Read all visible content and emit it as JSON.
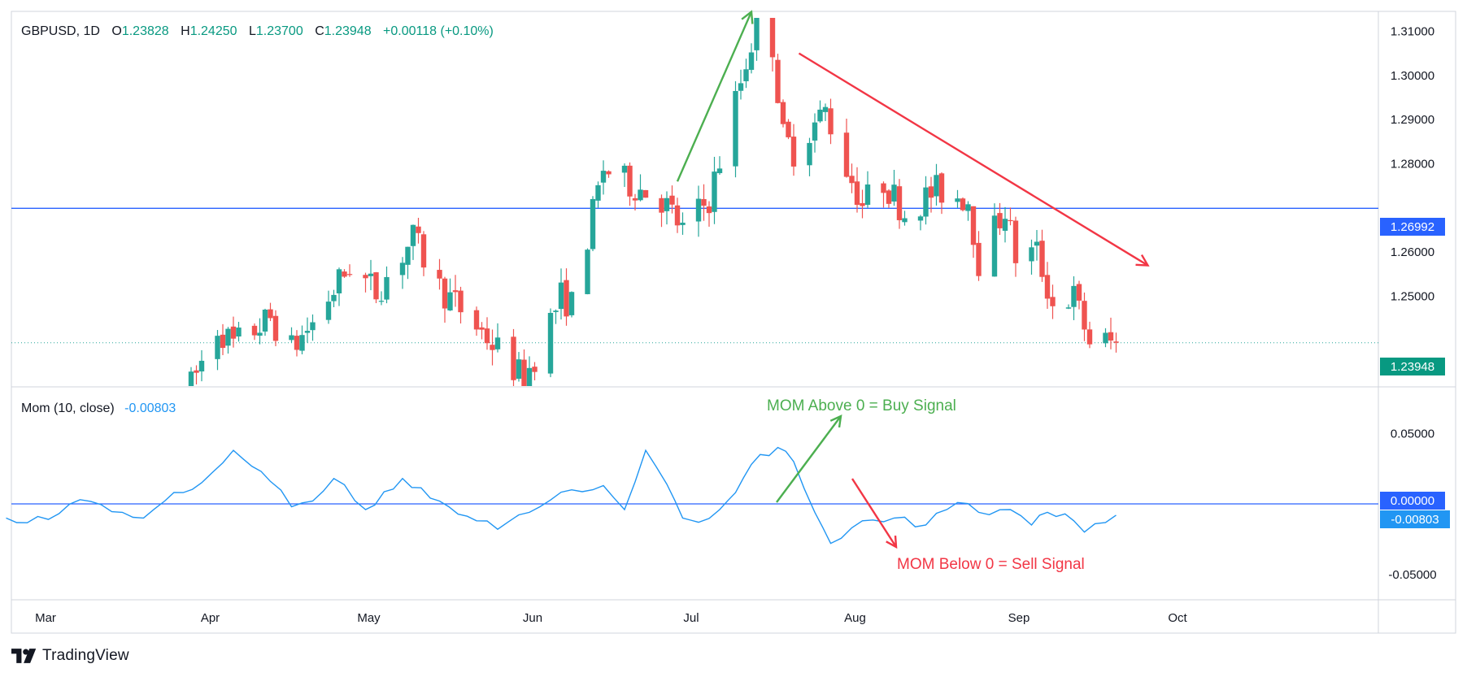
{
  "header": {
    "symbol": "GBPUSD",
    "timeframe": "1D",
    "open_label": "O",
    "open": "1.23828",
    "high_label": "H",
    "high": "1.24250",
    "low_label": "L",
    "low": "1.23700",
    "close_label": "C",
    "close": "1.23948",
    "change": "+0.00118 (+0.10%)"
  },
  "indicator": {
    "label": "Mom (10, close)",
    "value": "-0.00803"
  },
  "annotations": {
    "buy": "MOM Above 0 = Buy Signal",
    "sell": "MOM Below 0 = Sell Signal"
  },
  "price_labels": {
    "hline": "1.26992",
    "last": "1.23948",
    "mom_zero": "0.00000",
    "mom_last": "-0.00803"
  },
  "brand": "TradingView",
  "colors": {
    "up": "#26a69a",
    "down": "#ef5350",
    "line": "#2962ff",
    "mom": "#2196f3",
    "buy_arrow": "#4caf50",
    "sell_arrow": "#f23645",
    "text": "#131722"
  },
  "chart_data": [
    {
      "type": "candlestick",
      "symbol": "GBPUSD",
      "timeframe": "1D",
      "ylim": [
        1.2295,
        1.3145
      ],
      "yticks": [
        "1.31000",
        "1.30000",
        "1.29000",
        "1.28000",
        "1.26000",
        "1.25000"
      ],
      "horizontal_line": 1.26992,
      "last_price": 1.23948,
      "x_tick_labels": [
        "Mar",
        "Apr",
        "May",
        "Jun",
        "Jul",
        "Aug",
        "Sep",
        "Oct"
      ],
      "path": [
        [
          "2023-03-29",
          1.2298
        ],
        [
          "2023-04-03",
          1.243
        ],
        [
          "2023-04-06",
          1.239
        ],
        [
          "2023-04-13",
          1.245
        ],
        [
          "2023-04-17",
          1.238
        ],
        [
          "2023-04-21",
          1.244
        ],
        [
          "2023-04-28",
          1.257
        ],
        [
          "2023-05-03",
          1.251
        ],
        [
          "2023-05-10",
          1.263
        ],
        [
          "2023-05-15",
          1.252
        ],
        [
          "2023-05-23",
          1.242
        ],
        [
          "2023-05-31",
          1.231
        ],
        [
          "2023-06-07",
          1.25
        ],
        [
          "2023-06-09",
          1.248
        ],
        [
          "2023-06-15",
          1.279
        ],
        [
          "2023-06-19",
          1.276
        ],
        [
          "2023-06-26",
          1.272
        ],
        [
          "2023-06-30",
          1.265
        ],
        [
          "2023-07-05",
          1.272
        ],
        [
          "2023-07-14",
          1.312
        ],
        [
          "2023-07-17",
          1.307
        ],
        [
          "2023-07-19",
          1.286
        ],
        [
          "2023-07-21",
          1.283
        ],
        [
          "2023-07-27",
          1.292
        ],
        [
          "2023-07-31",
          1.279
        ],
        [
          "2023-08-03",
          1.271
        ],
        [
          "2023-08-07",
          1.276
        ],
        [
          "2023-08-11",
          1.269
        ],
        [
          "2023-08-17",
          1.274
        ],
        [
          "2023-08-23",
          1.272
        ],
        [
          "2023-08-25",
          1.258
        ],
        [
          "2023-08-30",
          1.27
        ],
        [
          "2023-09-01",
          1.259
        ],
        [
          "2023-09-05",
          1.26
        ],
        [
          "2023-09-08",
          1.248
        ],
        [
          "2023-09-12",
          1.25
        ],
        [
          "2023-09-15",
          1.24
        ],
        [
          "2023-09-20",
          1.2395
        ]
      ],
      "trend_lines": [
        {
          "from": [
            "2023-06-29",
            1.276
          ],
          "to": [
            "2023-07-13",
            1.3144
          ],
          "color": "#4caf50"
        },
        {
          "from": [
            "2023-07-22",
            1.305
          ],
          "to": [
            "2023-09-26",
            1.257
          ],
          "color": "#f23645"
        }
      ]
    },
    {
      "type": "line",
      "name": "Mom (10, close)",
      "ylim": [
        -0.068,
        0.083
      ],
      "yticks": [
        "0.05000",
        "0.00000",
        "-0.05000"
      ],
      "zero_line": 0,
      "last_value": -0.00803,
      "x": [
        "2023-02-22",
        "2023-03-02",
        "2023-03-08",
        "2023-03-16",
        "2023-03-20",
        "2023-03-24",
        "2023-03-31",
        "2023-04-06",
        "2023-04-13",
        "2023-04-17",
        "2023-04-21",
        "2023-04-25",
        "2023-05-01",
        "2023-05-08",
        "2023-05-15",
        "2023-05-22",
        "2023-05-26",
        "2023-06-01",
        "2023-06-09",
        "2023-06-15",
        "2023-06-19",
        "2023-06-23",
        "2023-06-27",
        "2023-06-30",
        "2023-07-03",
        "2023-07-07",
        "2023-07-10",
        "2023-07-13",
        "2023-07-18",
        "2023-07-21",
        "2023-07-25",
        "2023-07-28",
        "2023-08-03",
        "2023-08-09",
        "2023-08-15",
        "2023-08-21",
        "2023-08-25",
        "2023-08-31",
        "2023-09-04",
        "2023-09-07",
        "2023-09-12",
        "2023-09-14",
        "2023-09-20"
      ],
      "values": [
        -0.01,
        -0.011,
        0.003,
        -0.006,
        -0.01,
        0.002,
        0.015,
        0.038,
        0.016,
        -0.002,
        0.002,
        0.018,
        -0.004,
        0.018,
        0.002,
        -0.012,
        -0.018,
        -0.006,
        0.01,
        0.013,
        -0.004,
        0.038,
        0.014,
        -0.01,
        -0.013,
        -0.004,
        0.008,
        0.028,
        0.04,
        0.03,
        -0.006,
        -0.028,
        -0.012,
        -0.01,
        -0.015,
        0.001,
        -0.006,
        -0.004,
        -0.015,
        -0.006,
        -0.012,
        -0.02,
        -0.008
      ]
    }
  ]
}
